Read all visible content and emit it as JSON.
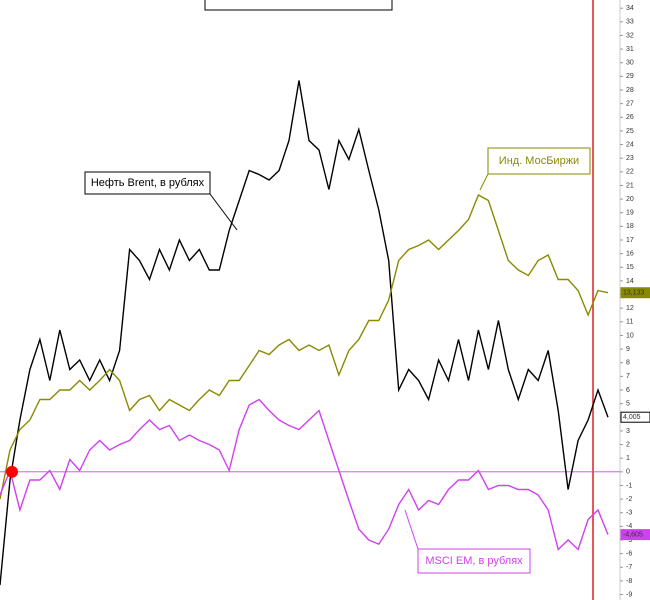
{
  "chart_data": {
    "type": "line",
    "ylim": [
      -9.4,
      34.6
    ],
    "yticks": [
      -9,
      -8,
      -7,
      -6,
      -5,
      -4,
      -3,
      -2,
      -1,
      0,
      1,
      2,
      3,
      4,
      5,
      6,
      7,
      8,
      9,
      10,
      11,
      12,
      13,
      14,
      15,
      16,
      17,
      18,
      19,
      20,
      21,
      22,
      23,
      24,
      25,
      26,
      27,
      28,
      29,
      30,
      31,
      32,
      33,
      34
    ],
    "reference_line": 0,
    "series": [
      {
        "name": "Нефть Brent, в рублях",
        "color": "#000000",
        "last_label": "4,005",
        "values": [
          -8.3,
          -0.6,
          3.8,
          7.5,
          9.7,
          6.7,
          10.4,
          7.5,
          8.2,
          6.7,
          8.2,
          6.7,
          8.9,
          16.3,
          15.5,
          14.1,
          16.3,
          14.8,
          17,
          15.5,
          16.3,
          14.8,
          14.8,
          17.7,
          19.9,
          22.1,
          21.8,
          21.4,
          22.1,
          24.3,
          28.7,
          24.3,
          23.6,
          20.7,
          24.3,
          22.9,
          25.1,
          22.1,
          19.2,
          15.5,
          6,
          7.5,
          6.7,
          5.3,
          8.2,
          6.7,
          9.7,
          6.7,
          10.4,
          7.5,
          11.1,
          7.5,
          5.3,
          7.5,
          6.7,
          8.9,
          4.5,
          -1.3,
          2.3,
          3.8,
          6,
          4.005
        ]
      },
      {
        "name": "Инд. МосБиржи",
        "color": "#8a8a00",
        "last_label": "13,133",
        "values": [
          -2,
          1.6,
          3.1,
          3.8,
          5.3,
          5.3,
          6,
          6,
          6.7,
          6,
          6.7,
          7.5,
          6.7,
          4.5,
          5.3,
          5.6,
          4.5,
          5.3,
          4.9,
          4.5,
          5.3,
          6,
          5.6,
          6.7,
          6.7,
          7.8,
          8.9,
          8.6,
          9.3,
          9.7,
          8.9,
          9.3,
          8.9,
          9.3,
          7.1,
          8.9,
          9.7,
          11.1,
          11.1,
          12.6,
          15.5,
          16.3,
          16.6,
          17,
          16.3,
          17,
          17.7,
          18.5,
          20.3,
          19.9,
          17.7,
          15.5,
          14.8,
          14.4,
          15.5,
          15.9,
          14.1,
          14.1,
          13.3,
          11.5,
          13.3,
          13.133
        ]
      },
      {
        "name": "MSCI EM, в рублях",
        "color": "#d040f0",
        "last_label": "-4,605",
        "values": [
          -1.7,
          0.1,
          -2.8,
          -0.6,
          -0.6,
          0.1,
          -1.3,
          0.9,
          0.1,
          1.6,
          2.3,
          1.6,
          2,
          2.3,
          3.1,
          3.8,
          3.1,
          3.4,
          2.3,
          2.7,
          2.3,
          2,
          1.6,
          0.1,
          3.1,
          4.9,
          5.3,
          4.5,
          3.8,
          3.4,
          3.1,
          3.8,
          4.5,
          2.3,
          0.1,
          -2.1,
          -4.2,
          -5,
          -5.3,
          -4.2,
          -2.4,
          -1.3,
          -2.8,
          -2.1,
          -2.4,
          -1.3,
          -0.6,
          -0.6,
          0.1,
          -1.3,
          -1,
          -1,
          -1.3,
          -1.3,
          -1.7,
          -2.8,
          -5.7,
          -5,
          -5.7,
          -3.5,
          -2.8,
          -4.605
        ]
      }
    ]
  }
}
